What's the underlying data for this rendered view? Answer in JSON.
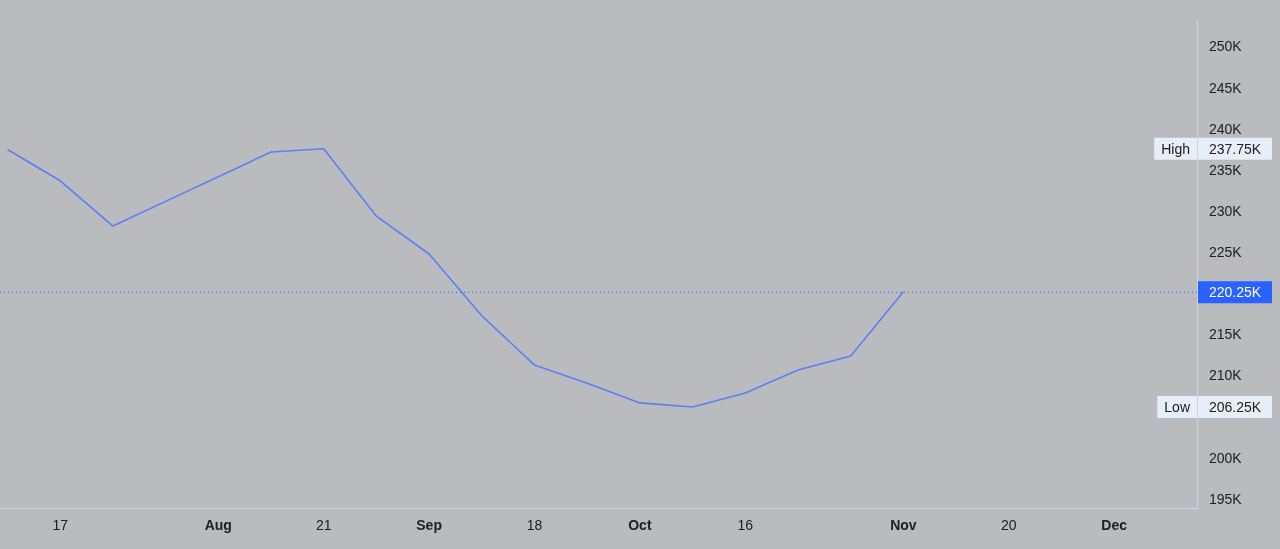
{
  "chart_data": {
    "type": "line",
    "x": [
      "--07-10",
      "--07-17",
      "--07-24",
      "--07-31",
      "--08-07",
      "--08-14",
      "--08-21",
      "--08-28",
      "--09-04",
      "--09-11",
      "--09-18",
      "--09-25",
      "--10-02",
      "--10-09",
      "--10-16",
      "--10-23",
      "--10-30",
      "--11-06"
    ],
    "series": [
      {
        "color": "#5b7ff5",
        "values": [
          237.6,
          233.8,
          228.3,
          231.3,
          234.3,
          237.3,
          237.7,
          229.5,
          224.9,
          217.4,
          211.4,
          209.2,
          206.8,
          206.3,
          208.0,
          210.8,
          212.5,
          220.3
        ]
      }
    ],
    "xlim": [
      "--07-09",
      "--12-15"
    ],
    "xticks": [
      {
        "value": "--07-17",
        "label": "17"
      },
      {
        "value": "--08-07",
        "label": "Aug"
      },
      {
        "value": "--08-21",
        "label": "21"
      },
      {
        "value": "--09-04",
        "label": "Sep"
      },
      {
        "value": "--09-18",
        "label": "18"
      },
      {
        "value": "--10-02",
        "label": "Oct"
      },
      {
        "value": "--10-16",
        "label": "16"
      },
      {
        "value": "--11-06",
        "label": "Nov"
      },
      {
        "value": "--11-20",
        "label": "20"
      },
      {
        "value": "--12-04",
        "label": "Dec"
      }
    ],
    "ylim": [
      194,
      253.3
    ],
    "yticks": [
      {
        "value": 195,
        "label": "195K"
      },
      {
        "value": 200,
        "label": "200K"
      },
      {
        "value": 210,
        "label": "210K"
      },
      {
        "value": 215,
        "label": "215K"
      },
      {
        "value": 225,
        "label": "225K"
      },
      {
        "value": 230,
        "label": "230K"
      },
      {
        "value": 235,
        "label": "235K"
      },
      {
        "value": 240,
        "label": "240K"
      },
      {
        "value": 245,
        "label": "245K"
      },
      {
        "value": 250,
        "label": "250K"
      }
    ],
    "ref_lines": [
      {
        "axis": "y",
        "value": 220.25,
        "label": "220.25K",
        "color": "#2962ff",
        "line_style": "dotted"
      }
    ],
    "annotations": [
      "High",
      "237.75K",
      "Low",
      "206.25K"
    ],
    "legend": false,
    "marker": "none",
    "line_style": "solid"
  }
}
